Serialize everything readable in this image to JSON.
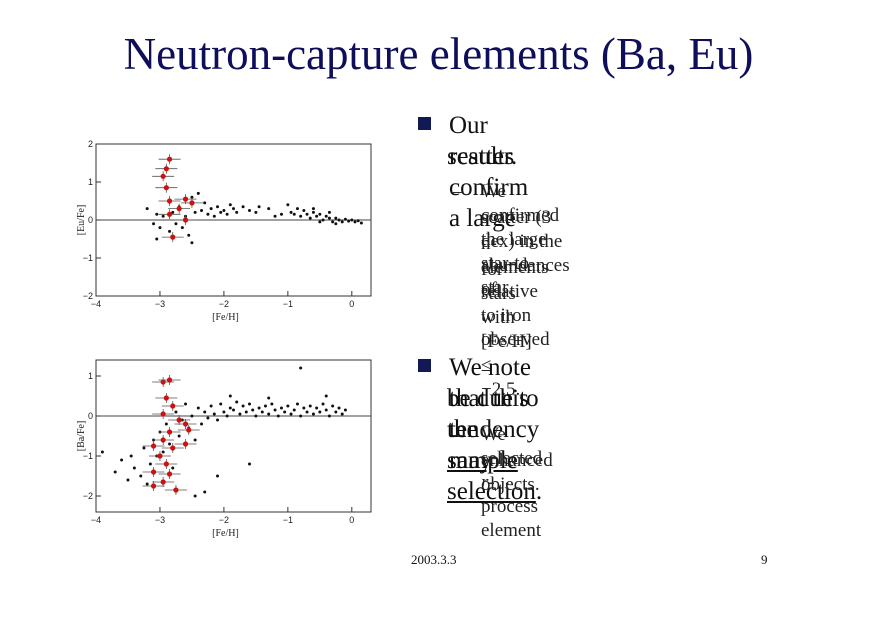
{
  "slide": {
    "title": "Neutron-capture elements (Ba, Eu)",
    "bullets": [
      {
        "lines": [
          "Our results confirm a large",
          "scatter."
        ],
        "sub": [
          [
            "We confirmed the large star-to-star",
            "scatter (3 dex) in the abundances of",
            "n-elements relative to iron observed",
            "for stars with [Fe/H] ≤ −2.5."
          ]
        ]
      },
      {
        "line1": "We note that this tendency may",
        "line2_pre": "be due to the ",
        "line2_underlined": "sample selection",
        "line2_post": ".",
        "sub_line1_pre": "We selected ",
        "sub_line1_italic": "r",
        "sub_line1_post": "-process element",
        "sub_line2": "enhanced objects."
      }
    ],
    "footer": {
      "date": "2003.3.3",
      "page": "9"
    }
  },
  "colors": {
    "title": "#0e0e5a",
    "bullet": "#111a55",
    "highlight": "#cc1111",
    "points": "#111111"
  },
  "chart_data": [
    {
      "type": "scatter",
      "xlabel": "[Fe/H]",
      "ylabel": "[Eu/Fe]",
      "xlim": [
        -4,
        0.3
      ],
      "ylim": [
        -2,
        2
      ],
      "xticks": [
        -4,
        -3,
        -2,
        -1,
        0
      ],
      "yticks": [
        -2,
        -1,
        0,
        1,
        2
      ],
      "reference_line_y": 0,
      "series": [
        {
          "name": "",
          "color": "#111111",
          "points": [
            [
              -3.2,
              0.3
            ],
            [
              -3.1,
              -0.1
            ],
            [
              -3.05,
              0.15
            ],
            [
              -3.0,
              -0.2
            ],
            [
              -2.95,
              0.1
            ],
            [
              -2.85,
              -0.3
            ],
            [
              -2.8,
              0.2
            ],
            [
              -2.75,
              -0.1
            ],
            [
              -2.7,
              0.35
            ],
            [
              -2.65,
              -0.2
            ],
            [
              -2.6,
              0.1
            ],
            [
              -2.55,
              -0.4
            ],
            [
              -2.5,
              0.6
            ],
            [
              -2.45,
              0.2
            ],
            [
              -2.4,
              0.7
            ],
            [
              -2.35,
              0.25
            ],
            [
              -2.3,
              0.45
            ],
            [
              -2.25,
              0.15
            ],
            [
              -2.2,
              0.3
            ],
            [
              -2.15,
              0.1
            ],
            [
              -2.1,
              0.35
            ],
            [
              -2.05,
              0.2
            ],
            [
              -2.0,
              0.25
            ],
            [
              -1.95,
              0.15
            ],
            [
              -1.9,
              0.4
            ],
            [
              -1.85,
              0.3
            ],
            [
              -1.8,
              0.2
            ],
            [
              -1.7,
              0.35
            ],
            [
              -1.6,
              0.25
            ],
            [
              -1.5,
              0.2
            ],
            [
              -1.45,
              0.35
            ],
            [
              -1.3,
              0.3
            ],
            [
              -1.2,
              0.1
            ],
            [
              -1.1,
              0.15
            ],
            [
              -1.0,
              0.4
            ],
            [
              -0.95,
              0.2
            ],
            [
              -0.9,
              0.15
            ],
            [
              -0.85,
              0.3
            ],
            [
              -0.8,
              0.1
            ],
            [
              -0.75,
              0.25
            ],
            [
              -0.7,
              0.15
            ],
            [
              -0.65,
              0.05
            ],
            [
              -0.6,
              0.2
            ],
            [
              -0.55,
              0.1
            ],
            [
              -0.5,
              0.15
            ],
            [
              -0.45,
              0.0
            ],
            [
              -0.4,
              0.1
            ],
            [
              -0.35,
              0.05
            ],
            [
              -0.3,
              -0.05
            ],
            [
              -0.25,
              0.05
            ],
            [
              -0.2,
              0.0
            ],
            [
              -0.15,
              -0.05
            ],
            [
              -0.1,
              0.02
            ],
            [
              -0.05,
              -0.03
            ],
            [
              0.0,
              0.0
            ],
            [
              0.05,
              -0.05
            ],
            [
              0.1,
              -0.02
            ],
            [
              0.15,
              -0.08
            ],
            [
              -0.6,
              0.3
            ],
            [
              -0.5,
              -0.05
            ],
            [
              -0.35,
              0.2
            ],
            [
              -0.25,
              -0.1
            ],
            [
              -2.5,
              -0.6
            ],
            [
              -3.05,
              -0.5
            ]
          ]
        },
        {
          "name": "",
          "color": "#cc1111",
          "points": [
            [
              -2.85,
              1.6
            ],
            [
              -2.9,
              1.35
            ],
            [
              -2.95,
              1.15
            ],
            [
              -2.9,
              0.85
            ],
            [
              -2.85,
              0.5
            ],
            [
              -2.6,
              0.55
            ],
            [
              -2.5,
              0.45
            ],
            [
              -2.7,
              0.3
            ],
            [
              -2.85,
              0.15
            ],
            [
              -2.6,
              0.0
            ],
            [
              -2.8,
              -0.45
            ]
          ]
        }
      ]
    },
    {
      "type": "scatter",
      "xlabel": "[Fe/H]",
      "ylabel": "[Ba/Fe]",
      "xlim": [
        -4,
        0.3
      ],
      "ylim": [
        -2.4,
        1.4
      ],
      "xticks": [
        -4,
        -3,
        -2,
        -1,
        0
      ],
      "yticks": [
        -2,
        -1,
        0,
        1
      ],
      "reference_line_y": 0,
      "series": [
        {
          "name": "",
          "color": "#111111",
          "points": [
            [
              -3.9,
              -0.9
            ],
            [
              -3.7,
              -1.4
            ],
            [
              -3.6,
              -1.1
            ],
            [
              -3.5,
              -1.6
            ],
            [
              -3.45,
              -1.0
            ],
            [
              -3.4,
              -1.3
            ],
            [
              -3.3,
              -1.5
            ],
            [
              -3.25,
              -0.8
            ],
            [
              -3.2,
              -1.7
            ],
            [
              -3.15,
              -1.2
            ],
            [
              -3.1,
              -0.6
            ],
            [
              -3.05,
              -1.0
            ],
            [
              -3.0,
              -0.4
            ],
            [
              -2.95,
              -0.9
            ],
            [
              -2.9,
              -0.2
            ],
            [
              -2.85,
              -0.7
            ],
            [
              -2.8,
              -1.3
            ],
            [
              -2.75,
              0.1
            ],
            [
              -2.7,
              -0.5
            ],
            [
              -2.65,
              -0.1
            ],
            [
              -2.6,
              0.3
            ],
            [
              -2.55,
              -0.3
            ],
            [
              -2.5,
              0.0
            ],
            [
              -2.45,
              -0.6
            ],
            [
              -2.4,
              0.2
            ],
            [
              -2.35,
              -0.2
            ],
            [
              -2.3,
              0.1
            ],
            [
              -2.25,
              -0.05
            ],
            [
              -2.2,
              0.25
            ],
            [
              -2.15,
              0.05
            ],
            [
              -2.1,
              -0.1
            ],
            [
              -2.05,
              0.3
            ],
            [
              -2.0,
              0.1
            ],
            [
              -1.95,
              0.0
            ],
            [
              -1.9,
              0.2
            ],
            [
              -1.85,
              0.15
            ],
            [
              -1.8,
              0.35
            ],
            [
              -1.75,
              0.05
            ],
            [
              -1.7,
              0.25
            ],
            [
              -1.65,
              0.1
            ],
            [
              -1.6,
              0.3
            ],
            [
              -1.55,
              0.15
            ],
            [
              -1.5,
              0.0
            ],
            [
              -1.45,
              0.2
            ],
            [
              -1.4,
              0.1
            ],
            [
              -1.35,
              0.25
            ],
            [
              -1.3,
              0.05
            ],
            [
              -1.25,
              0.3
            ],
            [
              -1.2,
              0.15
            ],
            [
              -1.15,
              0.0
            ],
            [
              -1.1,
              0.2
            ],
            [
              -1.05,
              0.1
            ],
            [
              -1.0,
              0.25
            ],
            [
              -0.95,
              0.05
            ],
            [
              -0.9,
              0.15
            ],
            [
              -0.85,
              0.3
            ],
            [
              -0.8,
              0.0
            ],
            [
              -0.75,
              0.2
            ],
            [
              -0.7,
              0.1
            ],
            [
              -0.65,
              0.25
            ],
            [
              -0.6,
              0.05
            ],
            [
              -0.55,
              0.2
            ],
            [
              -0.5,
              0.1
            ],
            [
              -0.45,
              0.3
            ],
            [
              -0.4,
              0.15
            ],
            [
              -0.35,
              0.0
            ],
            [
              -0.3,
              0.25
            ],
            [
              -0.25,
              0.1
            ],
            [
              -0.2,
              0.2
            ],
            [
              -0.15,
              0.05
            ],
            [
              -0.1,
              0.15
            ],
            [
              -0.8,
              1.2
            ],
            [
              -2.1,
              -1.5
            ],
            [
              -2.3,
              -1.9
            ],
            [
              -2.45,
              -2.0
            ],
            [
              -1.6,
              -1.2
            ],
            [
              -0.4,
              0.5
            ],
            [
              -1.3,
              0.45
            ],
            [
              -1.9,
              0.5
            ]
          ]
        },
        {
          "name": "",
          "color": "#cc1111",
          "points": [
            [
              -2.95,
              0.85
            ],
            [
              -2.85,
              0.9
            ],
            [
              -2.9,
              0.45
            ],
            [
              -2.8,
              0.25
            ],
            [
              -2.95,
              0.05
            ],
            [
              -2.7,
              -0.1
            ],
            [
              -2.6,
              -0.2
            ],
            [
              -2.55,
              -0.35
            ],
            [
              -2.85,
              -0.4
            ],
            [
              -2.95,
              -0.6
            ],
            [
              -3.1,
              -0.75
            ],
            [
              -2.8,
              -0.8
            ],
            [
              -2.6,
              -0.7
            ],
            [
              -3.0,
              -1.0
            ],
            [
              -2.9,
              -1.2
            ],
            [
              -3.1,
              -1.4
            ],
            [
              -2.85,
              -1.45
            ],
            [
              -2.95,
              -1.65
            ],
            [
              -2.75,
              -1.85
            ],
            [
              -3.1,
              -1.75
            ]
          ]
        }
      ]
    }
  ]
}
